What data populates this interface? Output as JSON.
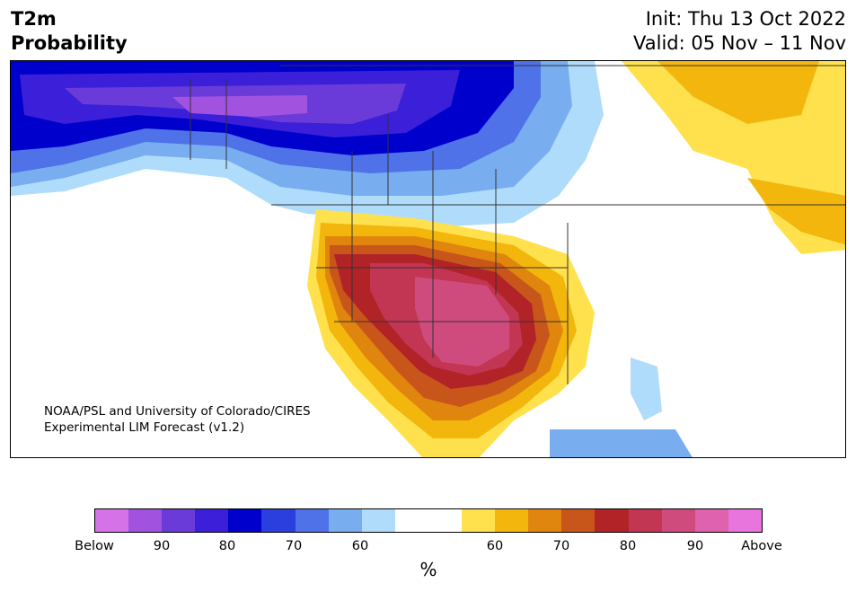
{
  "header": {
    "title_line1": "T2m",
    "title_line2": "Probability",
    "init": "Init: Thu 13 Oct 2022",
    "valid": "Valid: 05 Nov – 11 Nov"
  },
  "credit": {
    "line1": "NOAA/PSL and University of Colorado/CIRES",
    "line2": "Experimental LIM Forecast (v1.2)"
  },
  "colorbar": {
    "colors": [
      "#d672e8",
      "#a153e0",
      "#6a3bd8",
      "#3b1fd9",
      "#0000cc",
      "#2a3fdd",
      "#4f72e8",
      "#78aef0",
      "#b0dcfb",
      "#ffffff",
      "#ffffff",
      "#ffe14d",
      "#f3b60d",
      "#e0850d",
      "#c8561b",
      "#b22328",
      "#c23553",
      "#d04b7d",
      "#de62ad",
      "#e874dd"
    ],
    "tick_labels": [
      "Below",
      "90",
      "80",
      "70",
      "60",
      "60",
      "70",
      "80",
      "90",
      "Above"
    ],
    "unit": "%"
  },
  "palette": {
    "land_white": "#ffffff",
    "border": "#333333"
  }
}
